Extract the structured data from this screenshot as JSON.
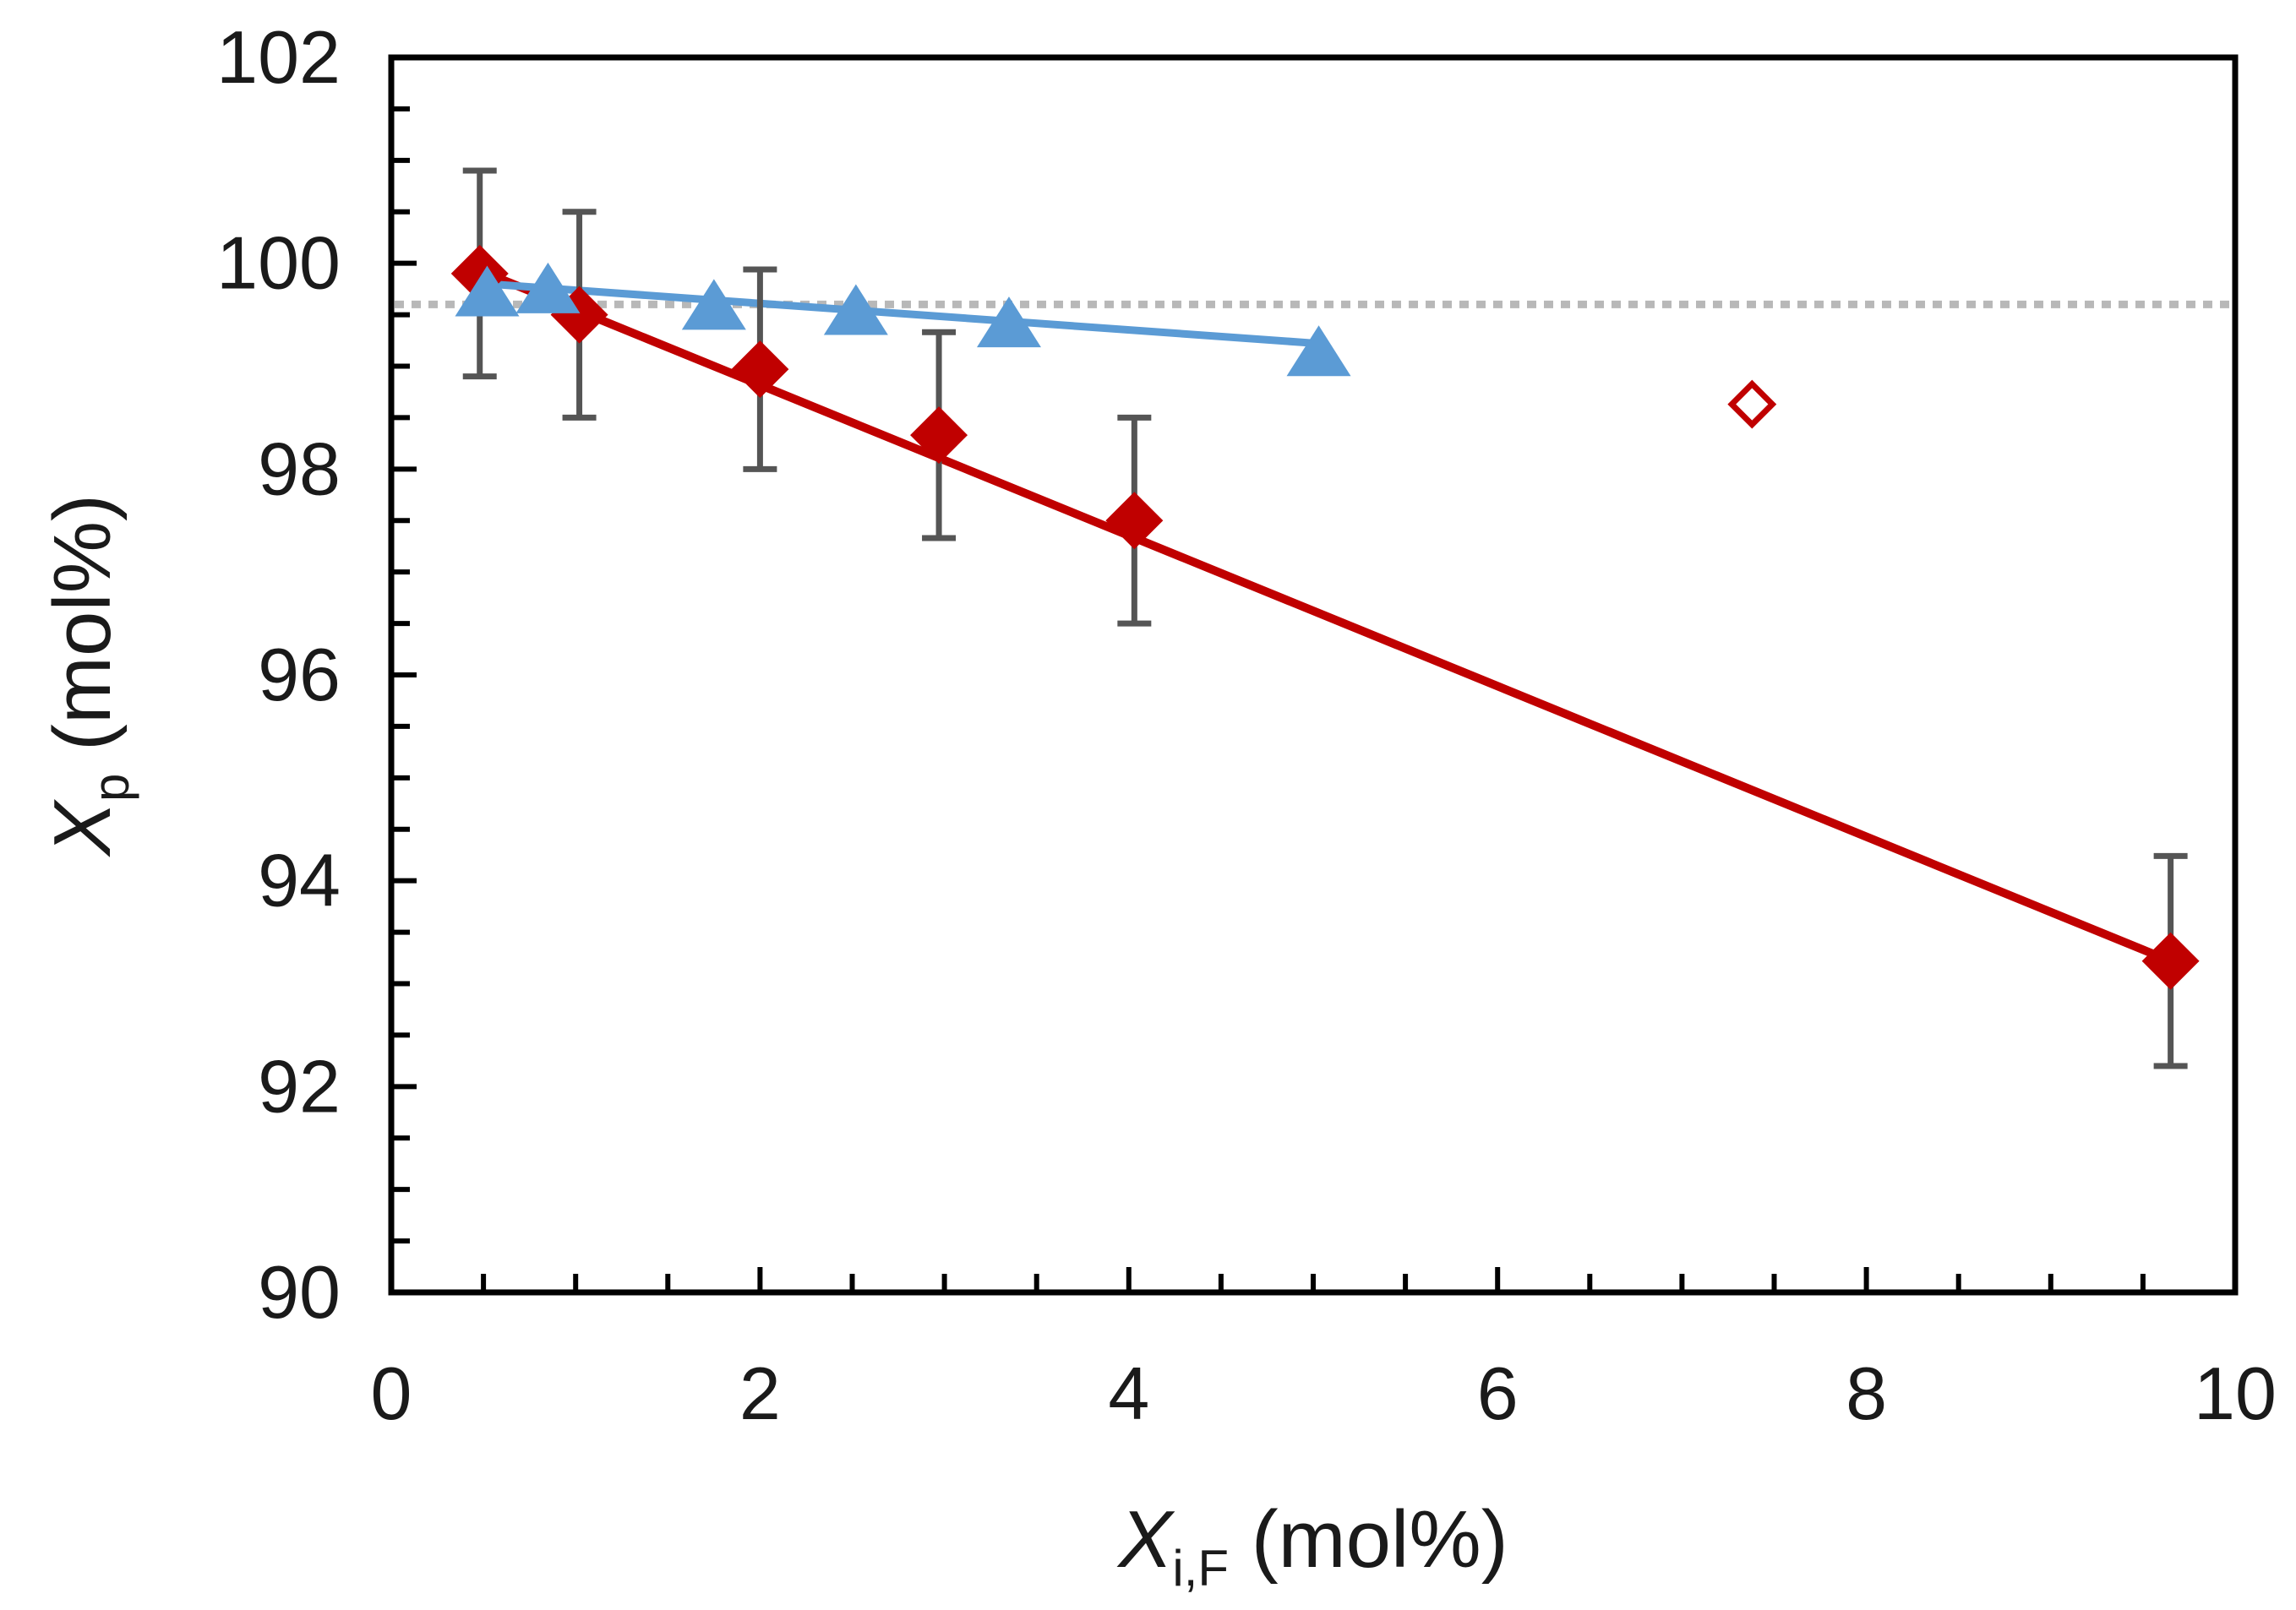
{
  "chart_data": {
    "type": "scatter",
    "title": "",
    "xlabel": {
      "main": "X",
      "sub": "i,F",
      "unit": " (mol%)"
    },
    "ylabel": {
      "main": "X",
      "sub": "p",
      "unit": " (mol%)"
    },
    "xlim": [
      0,
      10
    ],
    "ylim": [
      90,
      102
    ],
    "xticks": [
      0,
      2,
      4,
      6,
      8,
      10
    ],
    "yticks": [
      90,
      92,
      94,
      96,
      98,
      100,
      102
    ],
    "xtick_labels": [
      "0",
      "2",
      "4",
      "6",
      "8",
      "10"
    ],
    "ytick_labels": [
      "90",
      "92",
      "94",
      "96",
      "98",
      "100",
      "102"
    ],
    "x_minor_step": 0.5,
    "y_minor_step": 0.5,
    "grid": false,
    "reference_line": {
      "y": 99.6,
      "style": "dotted",
      "color": "#b8b8b8"
    },
    "series": [
      {
        "name": "red-diamonds",
        "marker": "diamond",
        "color": "#c00000",
        "x": [
          0.48,
          1.02,
          2.0,
          2.97,
          4.03,
          9.65
        ],
        "y": [
          99.9,
          99.5,
          98.97,
          98.33,
          97.5,
          93.22
        ],
        "yerr": [
          1.0,
          1.0,
          0.97,
          1.0,
          1.0,
          1.02
        ],
        "fit": {
          "x": [
            0.48,
            9.65
          ],
          "y": [
            99.93,
            93.22
          ]
        }
      },
      {
        "name": "red-diamond-open",
        "marker": "diamond-open",
        "color": "#c00000",
        "x": [
          7.38
        ],
        "y": [
          98.63
        ]
      },
      {
        "name": "blue-triangles",
        "marker": "triangle",
        "color": "#5b9bd5",
        "x": [
          0.52,
          0.85,
          1.75,
          2.52,
          3.35,
          5.03
        ],
        "y": [
          99.73,
          99.76,
          99.6,
          99.55,
          99.43,
          99.15
        ],
        "fit": {
          "x": [
            0.52,
            5.03
          ],
          "y": [
            99.8,
            99.22
          ]
        }
      }
    ],
    "errorbar_color": "#555555"
  }
}
